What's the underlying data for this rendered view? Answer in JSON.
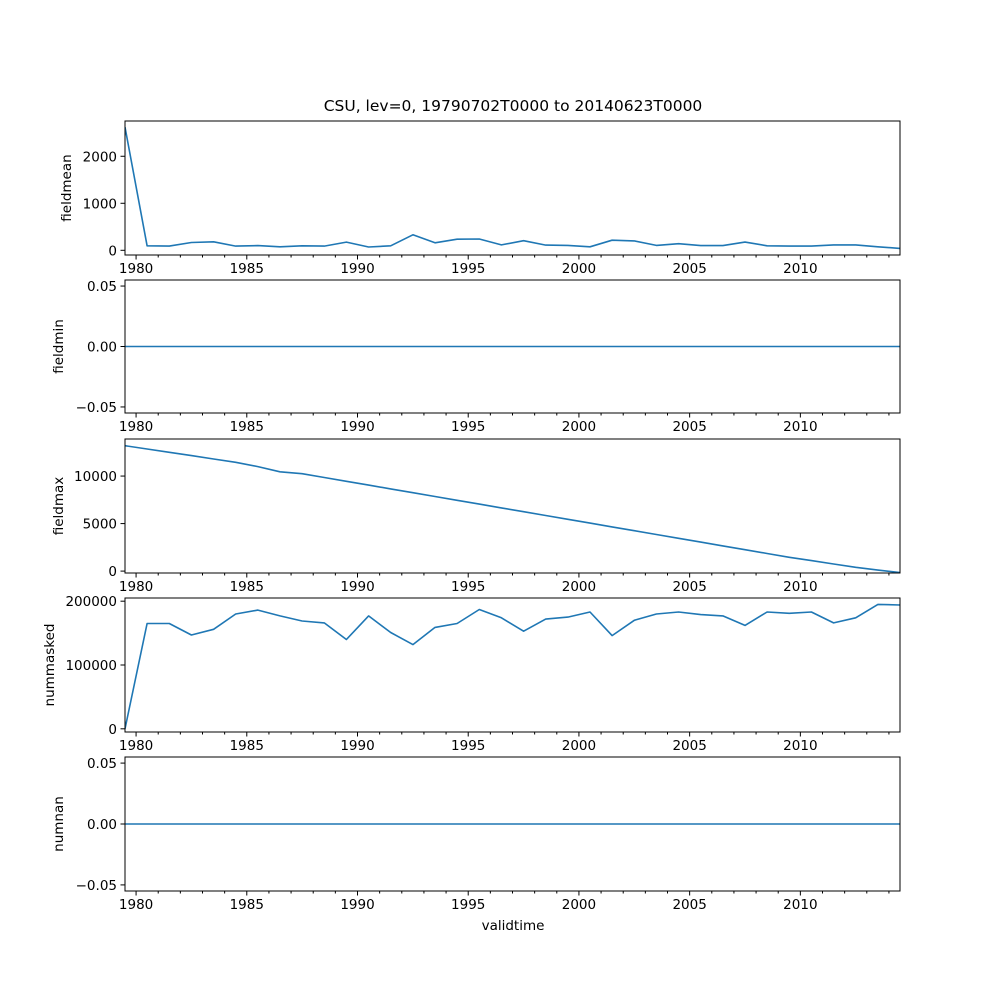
{
  "figure": {
    "title": "CSU, lev=0, 19790702T0000 to 20140623T0000",
    "xlabel": "validtime"
  },
  "chart_data": [
    {
      "type": "line",
      "name": "fieldmean",
      "ylabel": "fieldmean",
      "xlim": [
        1979.5,
        2014.5
      ],
      "ylim": [
        -100,
        2750
      ],
      "xticks": [
        1980,
        1985,
        1990,
        1995,
        2000,
        2005,
        2010
      ],
      "xtick_labels": [
        "1980",
        "1985",
        "1990",
        "1995",
        "2000",
        "2005",
        "2010"
      ],
      "yticks": [
        0,
        1000,
        2000
      ],
      "ytick_labels": [
        "0",
        "1000",
        "2000"
      ],
      "x": [
        1979.5,
        1980.5,
        1981.5,
        1982.5,
        1983.5,
        1984.5,
        1985.5,
        1986.5,
        1987.5,
        1988.5,
        1989.5,
        1990.5,
        1991.5,
        1992.5,
        1993.5,
        1994.5,
        1995.5,
        1996.5,
        1997.5,
        1998.5,
        1999.5,
        2000.5,
        2001.5,
        2002.5,
        2003.5,
        2004.5,
        2005.5,
        2006.5,
        2007.5,
        2008.5,
        2009.5,
        2010.5,
        2011.5,
        2012.5,
        2013.5,
        2014.5
      ],
      "y": [
        2620,
        95,
        90,
        165,
        180,
        90,
        100,
        75,
        95,
        90,
        175,
        70,
        95,
        330,
        160,
        235,
        240,
        115,
        205,
        110,
        105,
        75,
        215,
        200,
        105,
        140,
        100,
        100,
        175,
        95,
        90,
        90,
        115,
        115,
        75,
        40
      ]
    },
    {
      "type": "line",
      "name": "fieldmin",
      "ylabel": "fieldmin",
      "xlim": [
        1979.5,
        2014.5
      ],
      "ylim": [
        -0.055,
        0.055
      ],
      "xticks": [
        1980,
        1985,
        1990,
        1995,
        2000,
        2005,
        2010
      ],
      "xtick_labels": [
        "1980",
        "1985",
        "1990",
        "1995",
        "2000",
        "2005",
        "2010"
      ],
      "yticks": [
        -0.05,
        0.0,
        0.05
      ],
      "ytick_labels": [
        "−0.05",
        "0.00",
        "0.05"
      ],
      "x": [
        1979.5,
        2014.5
      ],
      "y": [
        0,
        0
      ]
    },
    {
      "type": "line",
      "name": "fieldmax",
      "ylabel": "fieldmax",
      "xlim": [
        1979.5,
        2014.5
      ],
      "ylim": [
        -200,
        13900
      ],
      "xticks": [
        1980,
        1985,
        1990,
        1995,
        2000,
        2005,
        2010
      ],
      "xtick_labels": [
        "1980",
        "1985",
        "1990",
        "1995",
        "2000",
        "2005",
        "2010"
      ],
      "yticks": [
        0,
        5000,
        10000
      ],
      "ytick_labels": [
        "0",
        "5000",
        "10000"
      ],
      "x": [
        1979.5,
        1980.5,
        1981.5,
        1982.5,
        1983.5,
        1984.5,
        1985.5,
        1986.5,
        1987.5,
        1988.5,
        1989.5,
        1990.5,
        1991.5,
        1992.5,
        1993.5,
        1994.5,
        1995.5,
        1996.5,
        1997.5,
        1998.5,
        1999.5,
        2000.5,
        2001.5,
        2002.5,
        2003.5,
        2004.5,
        2005.5,
        2006.5,
        2007.5,
        2008.5,
        2009.5,
        2010.5,
        2011.5,
        2012.5,
        2013.5,
        2014.5
      ],
      "y": [
        13200,
        12850,
        12500,
        12150,
        11800,
        11450,
        11000,
        10450,
        10250,
        9850,
        9450,
        9050,
        8650,
        8250,
        7850,
        7450,
        7050,
        6650,
        6250,
        5850,
        5450,
        5050,
        4650,
        4250,
        3850,
        3450,
        3050,
        2650,
        2250,
        1850,
        1450,
        1100,
        750,
        400,
        100,
        -150
      ]
    },
    {
      "type": "line",
      "name": "nummasked",
      "ylabel": "nummasked",
      "xlim": [
        1979.5,
        2014.5
      ],
      "ylim": [
        -5000,
        205000
      ],
      "xticks": [
        1980,
        1985,
        1990,
        1995,
        2000,
        2005,
        2010
      ],
      "xtick_labels": [
        "1980",
        "1985",
        "1990",
        "1995",
        "2000",
        "2005",
        "2010"
      ],
      "yticks": [
        0,
        100000,
        200000
      ],
      "ytick_labels": [
        "0",
        "100000",
        "200000"
      ],
      "x": [
        1979.5,
        1980.5,
        1981.5,
        1982.5,
        1983.5,
        1984.5,
        1985.5,
        1986.5,
        1987.5,
        1988.5,
        1989.5,
        1990.5,
        1991.5,
        1992.5,
        1993.5,
        1994.5,
        1995.5,
        1996.5,
        1997.5,
        1998.5,
        1999.5,
        2000.5,
        2001.5,
        2002.5,
        2003.5,
        2004.5,
        2005.5,
        2006.5,
        2007.5,
        2008.5,
        2009.5,
        2010.5,
        2011.5,
        2012.5,
        2013.5,
        2014.5
      ],
      "y": [
        0,
        165000,
        165000,
        147000,
        156000,
        180000,
        186000,
        177000,
        169000,
        166000,
        140000,
        177000,
        151000,
        132000,
        159000,
        165000,
        187000,
        174000,
        153000,
        172000,
        175000,
        183000,
        146000,
        170000,
        180000,
        183000,
        179000,
        177000,
        162000,
        183000,
        181000,
        183000,
        166000,
        174000,
        195000,
        194000
      ]
    },
    {
      "type": "line",
      "name": "numnan",
      "ylabel": "numnan",
      "xlim": [
        1979.5,
        2014.5
      ],
      "ylim": [
        -0.055,
        0.055
      ],
      "xticks": [
        1980,
        1985,
        1990,
        1995,
        2000,
        2005,
        2010
      ],
      "xtick_labels": [
        "1980",
        "1985",
        "1990",
        "1995",
        "2000",
        "2005",
        "2010"
      ],
      "yticks": [
        -0.05,
        0.0,
        0.05
      ],
      "ytick_labels": [
        "−0.05",
        "0.00",
        "0.05"
      ],
      "x": [
        1979.5,
        2014.5
      ],
      "y": [
        0,
        0
      ]
    }
  ]
}
